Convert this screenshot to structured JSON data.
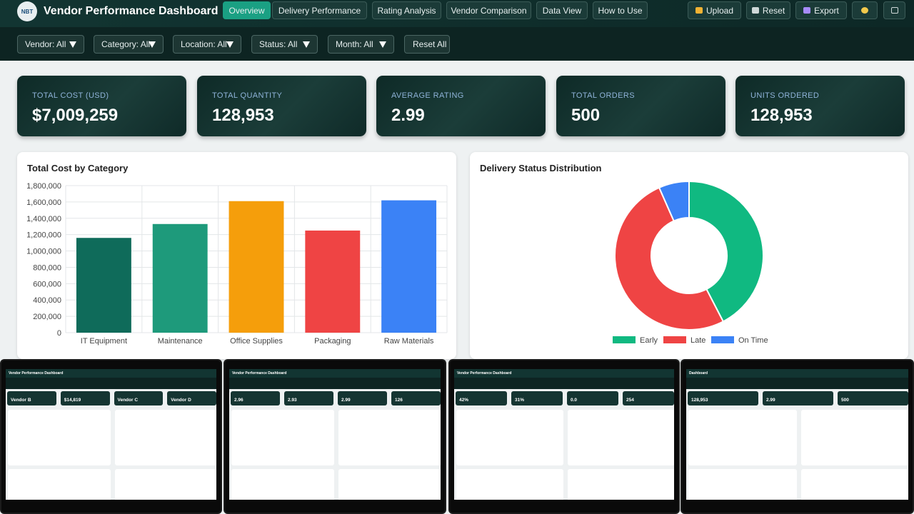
{
  "header": {
    "logo": "NBT",
    "title": "Vendor Performance Dashboard",
    "tabs": [
      "Overview",
      "Delivery Performance",
      "Rating Analysis",
      "Vendor Comparison",
      "Data View",
      "How to Use"
    ],
    "actions": [
      "Upload",
      "Reset",
      "Export"
    ]
  },
  "filters": [
    "Vendor: All",
    "Category: All",
    "Location: All",
    "Status: All",
    "Month: All"
  ],
  "reset_filters": "Reset All",
  "kpis": [
    {
      "label": "TOTAL COST (USD)",
      "value": "$7,009,259"
    },
    {
      "label": "TOTAL QUANTITY",
      "value": "128,953"
    },
    {
      "label": "AVERAGE RATING",
      "value": "2.99"
    },
    {
      "label": "TOTAL ORDERS",
      "value": "500"
    },
    {
      "label": "UNITS ORDERED",
      "value": "128,953"
    }
  ],
  "chart_data": [
    {
      "type": "bar",
      "title": "Total Cost by Category",
      "categories": [
        "IT Equipment",
        "Maintenance",
        "Office Supplies",
        "Packaging",
        "Raw Materials"
      ],
      "values": [
        1160000,
        1330000,
        1610000,
        1250000,
        1620000
      ],
      "colors": [
        "#0f6b5a",
        "#1e9a7b",
        "#f59e0b",
        "#ef4444",
        "#3b82f6"
      ],
      "ylim": [
        0,
        1800000
      ],
      "yticks": [
        0,
        {
          "value": 200000,
          "label": "200,000"
        },
        {
          "value": 400000,
          "label": "400,000"
        },
        {
          "value": 600000,
          "label": "600,000"
        },
        {
          "value": 800000,
          "label": "800,000"
        },
        {
          "value": 1000000,
          "label": "1,000,000"
        },
        {
          "value": 1200000,
          "label": "1,200,000"
        },
        {
          "value": 1400000,
          "label": "1,400,000"
        },
        {
          "value": 1600000,
          "label": "1,600,000"
        },
        {
          "value": 1800000,
          "label": "1,800,000"
        }
      ],
      "grid": true
    },
    {
      "type": "pie",
      "title": "Delivery Status Distribution",
      "categories": [
        "Early",
        "Late",
        "On Time"
      ],
      "values": [
        212,
        255,
        33
      ],
      "colors": [
        "#10b981",
        "#ef4444",
        "#3b82f6"
      ],
      "legend": "bottom"
    }
  ],
  "thumbnails": [
    {
      "title": "Vendor Performance Dashboard",
      "kpis": [
        "Vendor B",
        "$14,819",
        "Vendor C",
        "Vendor D"
      ]
    },
    {
      "title": "Vendor Performance Dashboard",
      "kpis": [
        "2.96",
        "2.93",
        "2.99",
        "126"
      ]
    },
    {
      "title": "Vendor Performance Dashboard",
      "kpis": [
        "42%",
        "31%",
        "0.0",
        "254"
      ]
    },
    {
      "title": "Dashboard",
      "kpis": [
        "128,953",
        "2.99",
        "500"
      ]
    }
  ]
}
